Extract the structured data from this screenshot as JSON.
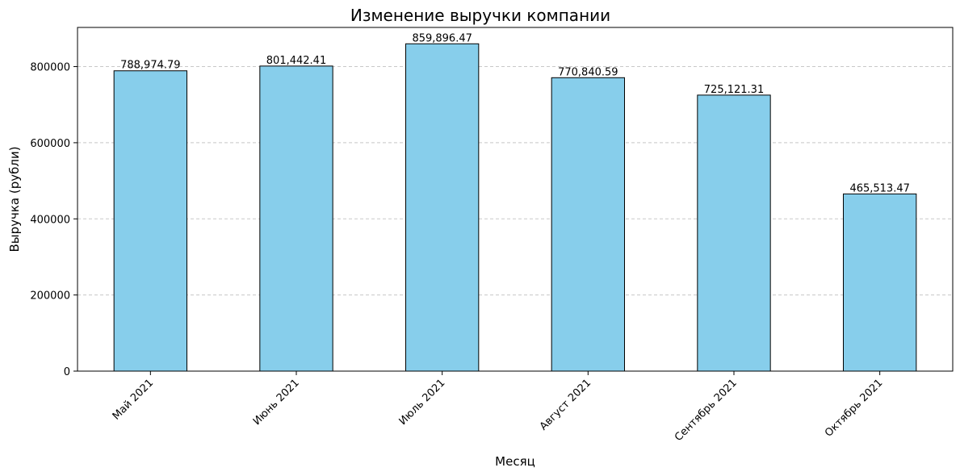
{
  "chart_data": {
    "type": "bar",
    "title": "Изменение выручки компании",
    "xlabel": "Месяц",
    "ylabel": "Выручка (рубли)",
    "categories": [
      "Май 2021",
      "Июнь 2021",
      "Июль 2021",
      "Август 2021",
      "Сентябрь 2021",
      "Октябрь 2021"
    ],
    "values": [
      788974.79,
      801442.41,
      859896.47,
      770840.59,
      725121.31,
      465513.47
    ],
    "value_labels": [
      "788,974.79",
      "801,442.41",
      "859,896.47",
      "770,840.59",
      "725,121.31",
      "465,513.47"
    ],
    "ylim": [
      0,
      902891
    ],
    "yticks": [
      0,
      200000,
      400000,
      600000,
      800000
    ],
    "ytick_labels": [
      "0",
      "200000",
      "400000",
      "600000",
      "800000"
    ],
    "grid": "y-dashed",
    "bar_color": "#87ceeb",
    "bar_edge_color": "#000000",
    "grid_color": "#c8c8c8"
  }
}
